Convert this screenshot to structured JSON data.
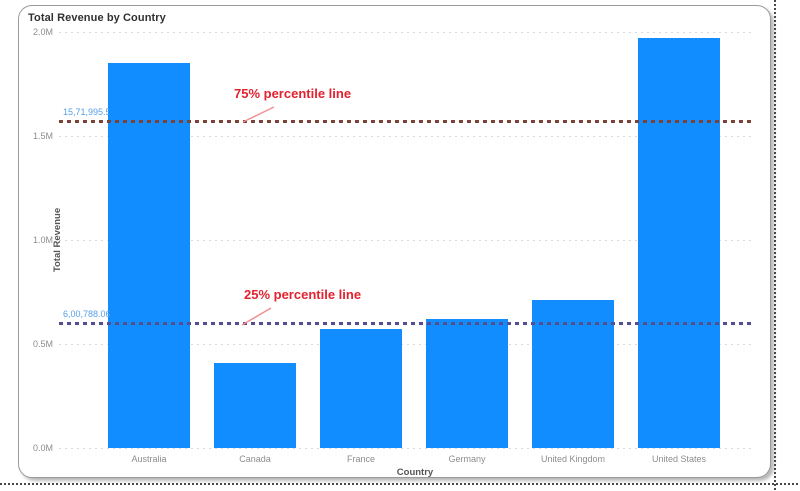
{
  "card": {
    "title": "Total Revenue by Country"
  },
  "chart_data": {
    "type": "bar",
    "title": "Total Revenue by Country",
    "xlabel": "Country",
    "ylabel": "Total Revenue",
    "categories": [
      "Australia",
      "Canada",
      "France",
      "Germany",
      "United Kingdom",
      "United States"
    ],
    "values": [
      1850000,
      410000,
      570000,
      620000,
      710000,
      1970000
    ],
    "ylim": [
      0,
      2000000
    ],
    "ytick_step": 500000,
    "ytick_labels": [
      "0.0M",
      "0.5M",
      "1.0M",
      "1.5M",
      "2.0M"
    ],
    "grid": true,
    "legend": "none",
    "bar_color": "#118DFF",
    "reference_lines": [
      {
        "id": "75",
        "annotation": "75% percentile line",
        "value": 1571995.5,
        "value_label": "15,71,995.56",
        "line_color": "#7A4338",
        "label_color": "#57A0E8",
        "annotation_color": "#E2222E",
        "leader_color": "#F09090"
      },
      {
        "id": "25",
        "annotation": "25% percentile line",
        "value": 600788.06,
        "value_label": "6,00,788.06",
        "line_color": "#54508F",
        "label_color": "#57A0E8",
        "annotation_color": "#E2222E",
        "leader_color": "#F09090"
      }
    ]
  }
}
